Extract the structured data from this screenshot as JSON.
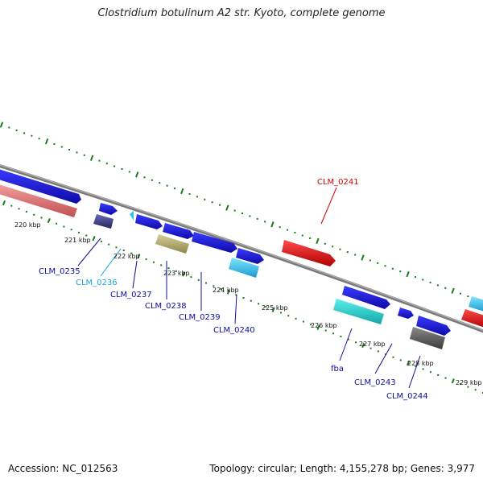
{
  "title": "Clostridium botulinum A2 str. Kyoto, complete genome",
  "footer": {
    "accession": "Accession: NC_012563",
    "topology": "Topology: circular; Length: 4,155,278 bp; Genes: 3,977"
  },
  "colors": {
    "backbone": "#8a8a8a",
    "ticks": "#1a7a1a",
    "blue": "#1a14e6",
    "salmon": "#e88080",
    "darkpurple": "#3a3a8a",
    "cyan": "#29c6e8",
    "khaki": "#b4aa6e",
    "red": "#e60f0f",
    "teal": "#1ecccc",
    "gray": "#5a5a5a",
    "label_blue": "#0d0d99",
    "label_cyan": "#1aa8d8",
    "label_red": "#cc0000"
  },
  "ticks": [
    {
      "label": "220 kbp"
    },
    {
      "label": "221 kbp"
    },
    {
      "label": "222 kbp"
    },
    {
      "label": "223 kbp"
    },
    {
      "label": "224 kbp"
    },
    {
      "label": "225 kbp"
    },
    {
      "label": "226 kbp"
    },
    {
      "label": "227 kbp"
    },
    {
      "label": "228 kbp"
    },
    {
      "label": "229 kbp"
    }
  ],
  "gene_labels": [
    {
      "label": "CLM_0235",
      "color": "label_blue"
    },
    {
      "label": "CLM_0236",
      "color": "label_cyan"
    },
    {
      "label": "CLM_0237",
      "color": "label_blue"
    },
    {
      "label": "CLM_0238",
      "color": "label_blue"
    },
    {
      "label": "CLM_0239",
      "color": "label_blue"
    },
    {
      "label": "CLM_0240",
      "color": "label_blue"
    },
    {
      "label": "CLM_0241",
      "color": "label_red"
    },
    {
      "label": "fba",
      "color": "label_blue"
    },
    {
      "label": "CLM_0243",
      "color": "label_blue"
    },
    {
      "label": "CLM_0244",
      "color": "label_blue"
    }
  ]
}
